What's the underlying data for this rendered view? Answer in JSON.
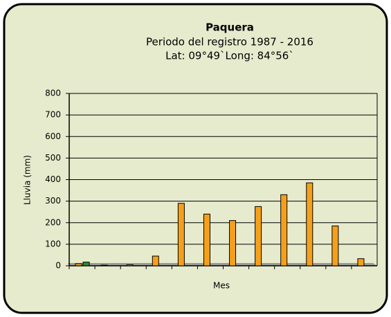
{
  "chart_data": {
    "type": "bar",
    "title": "Paquera",
    "subtitle": [
      "Periodo del registro 1987 - 2016",
      "Lat: 09°49`Long: 84°56`"
    ],
    "ylabel": "Lluvia (mm)",
    "xlabel": "Mes",
    "categories": [
      null,
      null,
      null,
      null,
      null,
      null,
      null,
      null,
      null,
      null,
      null,
      null
    ],
    "series": [
      {
        "color": "#f5a01a",
        "values": [
          10,
          3,
          5,
          45,
          290,
          240,
          210,
          275,
          330,
          385,
          185,
          33
        ]
      },
      {
        "color": "#2e8b2e",
        "values": [
          17,
          null,
          null,
          null,
          null,
          null,
          null,
          null,
          null,
          null,
          null,
          null
        ]
      }
    ],
    "ylim": [
      0,
      800
    ],
    "yticks": [
      0,
      100,
      200,
      300,
      400,
      500,
      600,
      700,
      800
    ],
    "grid": true
  }
}
